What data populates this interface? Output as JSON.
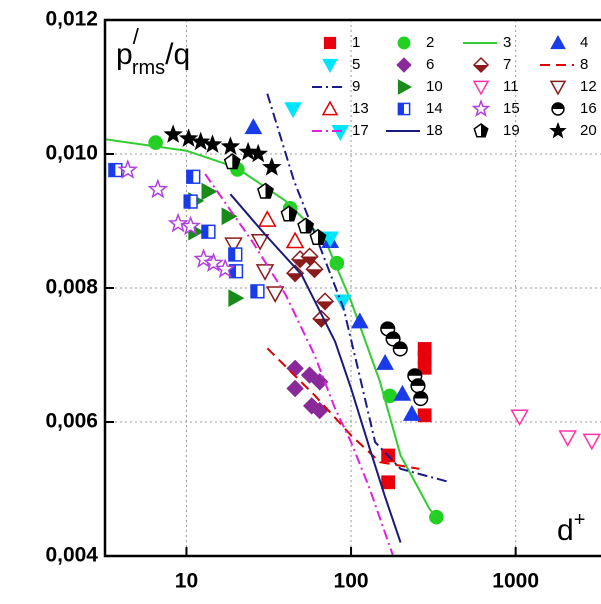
{
  "chart_data": {
    "type": "scatter",
    "xscale": "log",
    "grid": true,
    "legend_loc": "upper right",
    "ylabel": {
      "base": "p",
      "sup": "/",
      "sub": "rms",
      "tail": "/q"
    },
    "xlabel": {
      "base": "d",
      "sup": "+"
    },
    "xlim": [
      3.2,
      3300
    ],
    "xticks": [
      10,
      100,
      1000
    ],
    "ylim": [
      0.004,
      0.012
    ],
    "yticks": [
      {
        "value": 0.004,
        "label": "0,004"
      },
      {
        "value": 0.006,
        "label": "0,006"
      },
      {
        "value": 0.008,
        "label": "0,008"
      },
      {
        "value": 0.01,
        "label": "0,010"
      },
      {
        "value": 0.012,
        "label": "0,012"
      }
    ],
    "series": [
      {
        "name": "1",
        "marker": "square",
        "color": "#e8000b",
        "x": [
          280,
          280,
          280,
          280,
          168,
          168
        ],
        "values": [
          0.00709,
          0.00696,
          0.00681,
          0.0061,
          0.0055,
          0.0051
        ]
      },
      {
        "name": "2",
        "marker": "circle",
        "color": "#22d022",
        "x": [
          6.5,
          20.4,
          42.7,
          82,
          172,
          330
        ],
        "values": [
          0.01017,
          0.00977,
          0.00919,
          0.00837,
          0.00639,
          0.00458
        ]
      },
      {
        "name": "3",
        "line": "solid",
        "color": "#33cc33",
        "x": [
          3.2,
          10,
          20,
          40,
          70,
          100,
          150,
          200,
          300,
          330
        ],
        "values": [
          0.01022,
          0.01005,
          0.0098,
          0.0093,
          0.0087,
          0.0078,
          0.0066,
          0.0055,
          0.0047,
          0.00458
        ]
      },
      {
        "name": "4",
        "marker": "triangle-up",
        "color": "#1a3ce8",
        "x": [
          25.5,
          74.7,
          113,
          161,
          205,
          234
        ],
        "values": [
          0.0104,
          0.0087,
          0.0075,
          0.00688,
          0.00642,
          0.00612
        ]
      },
      {
        "name": "5",
        "marker": "triangle-down",
        "color": "#00e5ff",
        "x": [
          44.4,
          86,
          74.7,
          89
        ],
        "values": [
          0.01067,
          0.01033,
          0.00874,
          0.0078
        ]
      },
      {
        "name": "6",
        "marker": "diamond",
        "color": "#8a2a9a",
        "x": [
          45.7,
          45.7,
          56,
          64.5,
          57.7,
          64.5
        ],
        "values": [
          0.0068,
          0.0065,
          0.0067,
          0.0066,
          0.00624,
          0.00617
        ]
      },
      {
        "name": "7",
        "marker": "half-diamond",
        "color": "#8b1a1a",
        "x": [
          45.7,
          49,
          56,
          60,
          69.5,
          66
        ],
        "values": [
          0.00822,
          0.00843,
          0.00847,
          0.00828,
          0.0078,
          0.00754
        ]
      },
      {
        "name": "8",
        "line": "dash",
        "color": "#e00000",
        "x": [
          31,
          60,
          100,
          150,
          260
        ],
        "values": [
          0.0071,
          0.0064,
          0.0058,
          0.0054,
          0.0053
        ]
      },
      {
        "name": "9",
        "line": "dashdot",
        "color": "#1a1a8a",
        "x": [
          31,
          45,
          65,
          90,
          110,
          140,
          200,
          400
        ],
        "values": [
          0.0109,
          0.0096,
          0.0086,
          0.0077,
          0.0068,
          0.0057,
          0.0053,
          0.0051
        ]
      },
      {
        "name": "10",
        "marker": "triangle-right",
        "color": "#1a8a1a",
        "x": [
          13.6,
          18,
          19.8,
          11.3,
          11.3
        ],
        "values": [
          0.00944,
          0.00907,
          0.00785,
          0.00884,
          0.0093
        ]
      },
      {
        "name": "11",
        "marker": "open-triangle-down",
        "color": "#ff33aa",
        "x": [
          1057,
          2070,
          2900
        ],
        "values": [
          0.00608,
          0.00577,
          0.00572
        ]
      },
      {
        "name": "12",
        "marker": "open-triangle-down",
        "color": "#8b1a1a",
        "x": [
          19.3,
          28,
          34.6,
          30
        ],
        "values": [
          0.00865,
          0.0087,
          0.00792,
          0.00825
        ]
      },
      {
        "name": "13",
        "marker": "open-triangle-up",
        "color": "#e00000",
        "x": [
          31,
          45.7
        ],
        "values": [
          0.00902,
          0.0087
        ]
      },
      {
        "name": "14",
        "marker": "half-square",
        "color": "#1a3ce8",
        "x": [
          3.7,
          11,
          10.6,
          13.6,
          19.8,
          27,
          20
        ],
        "values": [
          0.00976,
          0.00966,
          0.00929,
          0.00884,
          0.0085,
          0.00795,
          0.00825
        ]
      },
      {
        "name": "15",
        "marker": "open-star",
        "color": "#b040e0",
        "x": [
          4.4,
          6.7,
          8.9,
          10.6,
          12.7,
          14.6,
          17.2
        ],
        "values": [
          0.00976,
          0.00947,
          0.00896,
          0.00892,
          0.00843,
          0.00837,
          0.00828
        ]
      },
      {
        "name": "16",
        "marker": "half-circle",
        "color": "#000000",
        "x": [
          167,
          180,
          199,
          244,
          255,
          265
        ],
        "values": [
          0.00739,
          0.00724,
          0.00709,
          0.00669,
          0.00654,
          0.00635
        ]
      },
      {
        "name": "17",
        "line": "dashdot",
        "color": "#e020e0",
        "x": [
          13,
          25,
          40,
          60,
          80,
          100,
          130,
          180
        ],
        "values": [
          0.0097,
          0.0087,
          0.0079,
          0.007,
          0.0062,
          0.0057,
          0.005,
          0.004
        ]
      },
      {
        "name": "18",
        "line": "solid",
        "color": "#1a1a7a",
        "x": [
          18.5,
          30,
          50,
          80,
          100,
          130,
          160,
          200
        ],
        "values": [
          0.0094,
          0.0088,
          0.0082,
          0.0072,
          0.0065,
          0.0056,
          0.0049,
          0.0042
        ]
      },
      {
        "name": "19",
        "marker": "half-pentagon",
        "color": "#000000",
        "x": [
          19,
          30.2,
          42,
          53,
          63
        ],
        "values": [
          0.00988,
          0.00944,
          0.0091,
          0.00892,
          0.00875
        ]
      },
      {
        "name": "20",
        "marker": "star",
        "color": "#000000",
        "x": [
          8.3,
          10.3,
          12.2,
          14.4,
          18.5,
          23.7,
          27.3,
          33
        ],
        "values": [
          0.01029,
          0.01023,
          0.01018,
          0.01014,
          0.01011,
          0.01003,
          0.01,
          0.0098
        ]
      }
    ]
  }
}
